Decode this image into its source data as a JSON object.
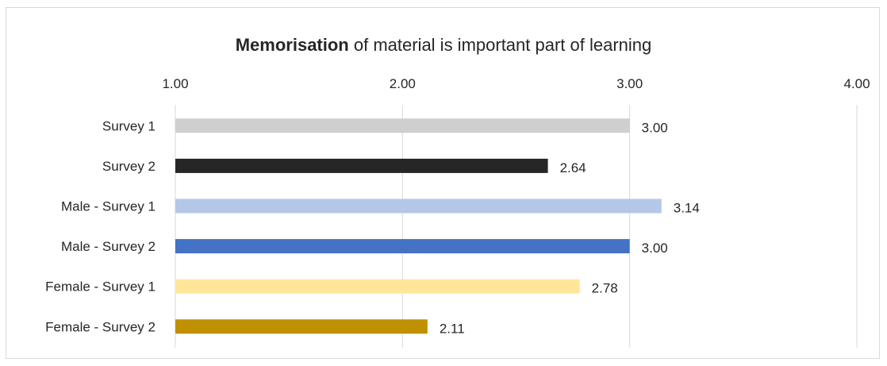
{
  "chart_data": {
    "type": "bar",
    "orientation": "horizontal",
    "title_bold": "Memorisation",
    "title_rest": " of material is important part of learning",
    "xlim": [
      1.0,
      4.0
    ],
    "ticks": [
      "1.00",
      "2.00",
      "3.00",
      "4.00"
    ],
    "tick_values": [
      1,
      2,
      3,
      4
    ],
    "grid": true,
    "categories": [
      "Survey 1",
      "Survey 2",
      "Male - Survey 1",
      "Male - Survey 2",
      "Female - Survey 1",
      "Female - Survey 2"
    ],
    "values": [
      3.0,
      2.64,
      3.14,
      3.0,
      2.78,
      2.11
    ],
    "value_labels": [
      "3.00",
      "2.64",
      "3.14",
      "3.00",
      "2.78",
      "2.11"
    ],
    "colors": [
      "#d0cece",
      "#262626",
      "#b4c7e7",
      "#4472c4",
      "#ffe699",
      "#bf9000"
    ]
  }
}
